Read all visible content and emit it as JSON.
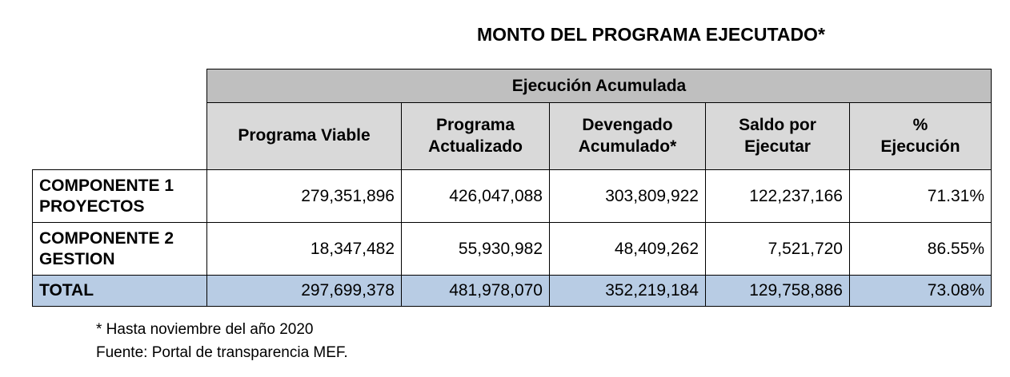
{
  "title": "MONTO DEL PROGRAMA EJECUTADO*",
  "table": {
    "group_header": "Ejecución Acumulada",
    "columns": [
      "Programa Viable",
      "Programa\nActualizado",
      "Devengado\nAcumulado*",
      "Saldo por\nEjecutar",
      "%\nEjecución"
    ],
    "rows": [
      {
        "label": "COMPONENTE 1\nPROYECTOS",
        "values": [
          "279,351,896",
          "426,047,088",
          "303,809,922",
          "122,237,166",
          "71.31%"
        ]
      },
      {
        "label": "COMPONENTE 2\nGESTION",
        "values": [
          "18,347,482",
          "55,930,982",
          "48,409,262",
          "7,521,720",
          "86.55%"
        ]
      }
    ],
    "total": {
      "label": "TOTAL",
      "values": [
        "297,699,378",
        "481,978,070",
        "352,219,184",
        "129,758,886",
        "73.08%"
      ],
      "highlight_color": "#b8cce4"
    },
    "header_color": "#bfbfbf",
    "subheader_color": "#d9d9d9"
  },
  "notes": {
    "footnote": "* Hasta noviembre del año 2020",
    "source": "Fuente: Portal de transparencia MEF."
  }
}
